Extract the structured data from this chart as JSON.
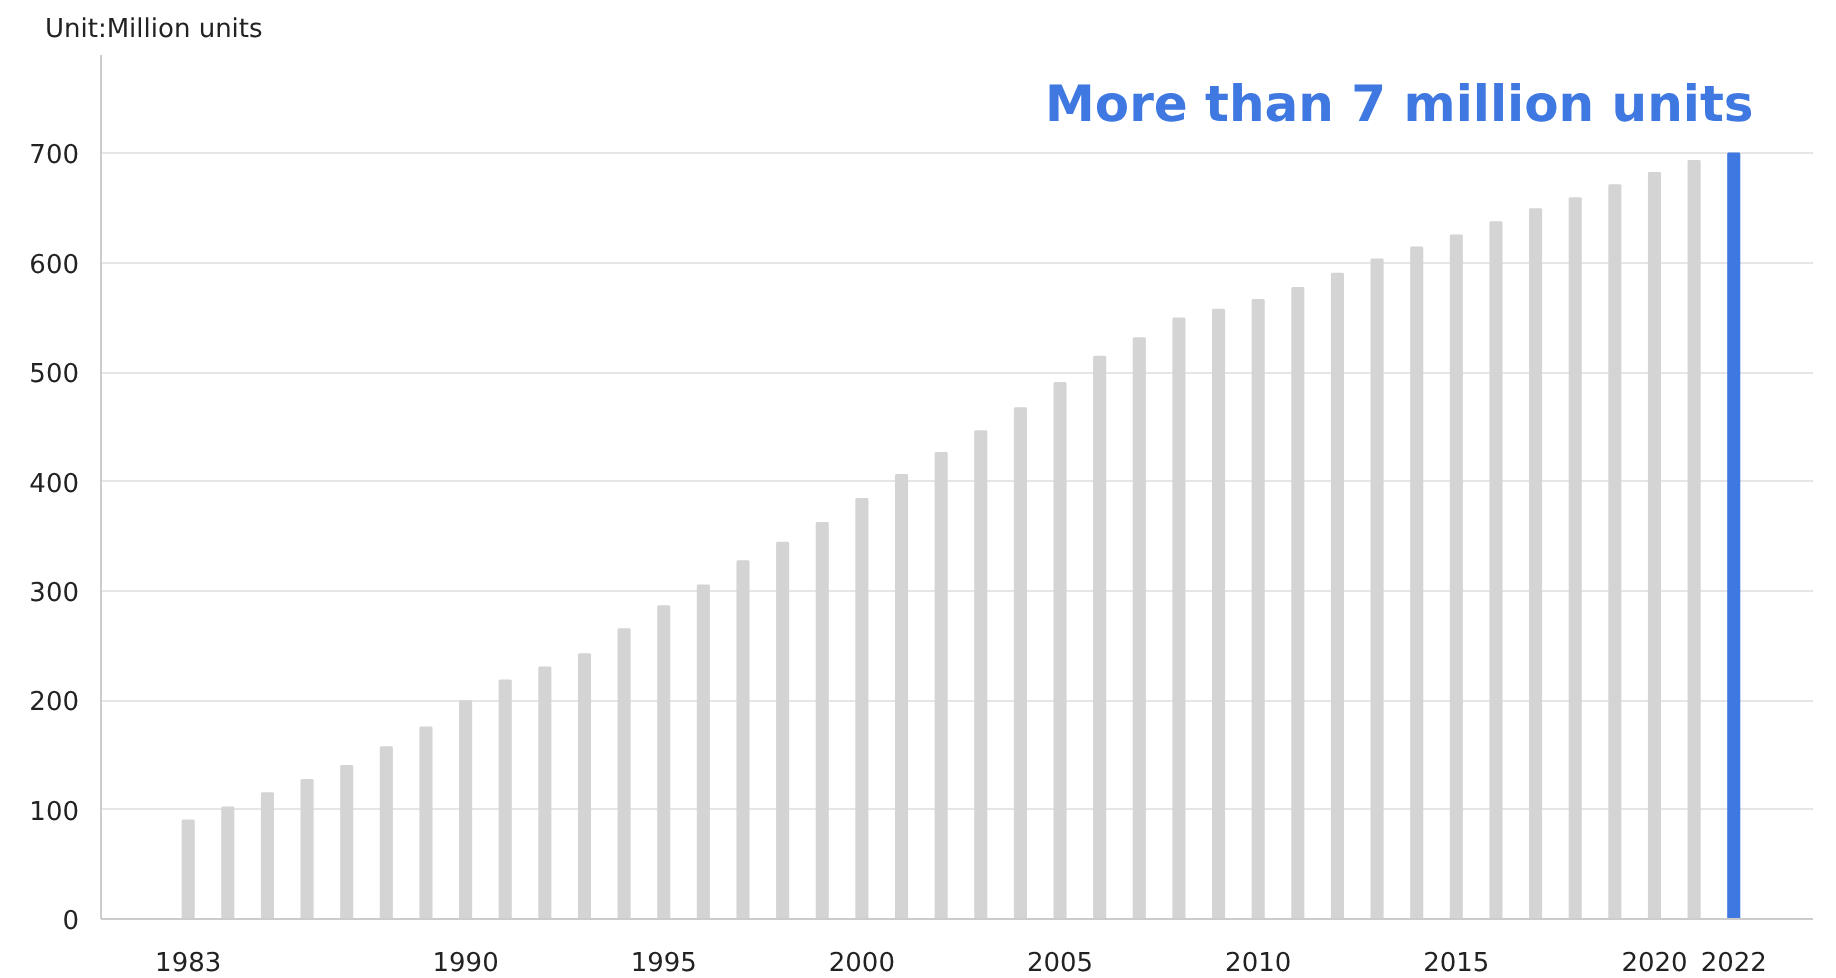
{
  "chart_data": {
    "type": "bar",
    "ylabel": "Unit:Million units",
    "x": [
      1983,
      1984,
      1985,
      1986,
      1987,
      1988,
      1989,
      1990,
      1991,
      1992,
      1993,
      1994,
      1995,
      1996,
      1997,
      1998,
      1999,
      2000,
      2001,
      2002,
      2003,
      2004,
      2005,
      2006,
      2007,
      2008,
      2009,
      2010,
      2011,
      2012,
      2013,
      2014,
      2015,
      2016,
      2017,
      2018,
      2019,
      2020,
      2021,
      2022
    ],
    "values": [
      90,
      102,
      115,
      127,
      140,
      157,
      175,
      199,
      218,
      230,
      242,
      265,
      286,
      305,
      327,
      344,
      362,
      384,
      406,
      426,
      446,
      467,
      490,
      514,
      531,
      549,
      557,
      566,
      577,
      590,
      603,
      614,
      625,
      637,
      649,
      659,
      671,
      682,
      693,
      700
    ],
    "colors": [
      "#d4d4d4",
      "#d4d4d4",
      "#d4d4d4",
      "#d4d4d4",
      "#d4d4d4",
      "#d4d4d4",
      "#d4d4d4",
      "#d4d4d4",
      "#d4d4d4",
      "#d4d4d4",
      "#d4d4d4",
      "#d4d4d4",
      "#d4d4d4",
      "#d4d4d4",
      "#d4d4d4",
      "#d4d4d4",
      "#d4d4d4",
      "#d4d4d4",
      "#d4d4d4",
      "#d4d4d4",
      "#d4d4d4",
      "#d4d4d4",
      "#d4d4d4",
      "#d4d4d4",
      "#d4d4d4",
      "#d4d4d4",
      "#d4d4d4",
      "#d4d4d4",
      "#d4d4d4",
      "#d4d4d4",
      "#d4d4d4",
      "#d4d4d4",
      "#d4d4d4",
      "#d4d4d4",
      "#d4d4d4",
      "#d4d4d4",
      "#d4d4d4",
      "#d4d4d4",
      "#d4d4d4",
      "#3f78e0"
    ],
    "xlim": [
      1980.8,
      2024
    ],
    "xticks": [
      1983,
      1990,
      1995,
      2000,
      2005,
      2010,
      2015,
      2020,
      2022
    ],
    "ylim": [
      0,
      790
    ],
    "yticks": [
      0,
      100,
      200,
      300,
      400,
      500,
      600,
      700
    ],
    "grid": "y",
    "annotations": [
      {
        "text": "More than 7 million units",
        "x": 2022,
        "y": 700
      }
    ]
  }
}
